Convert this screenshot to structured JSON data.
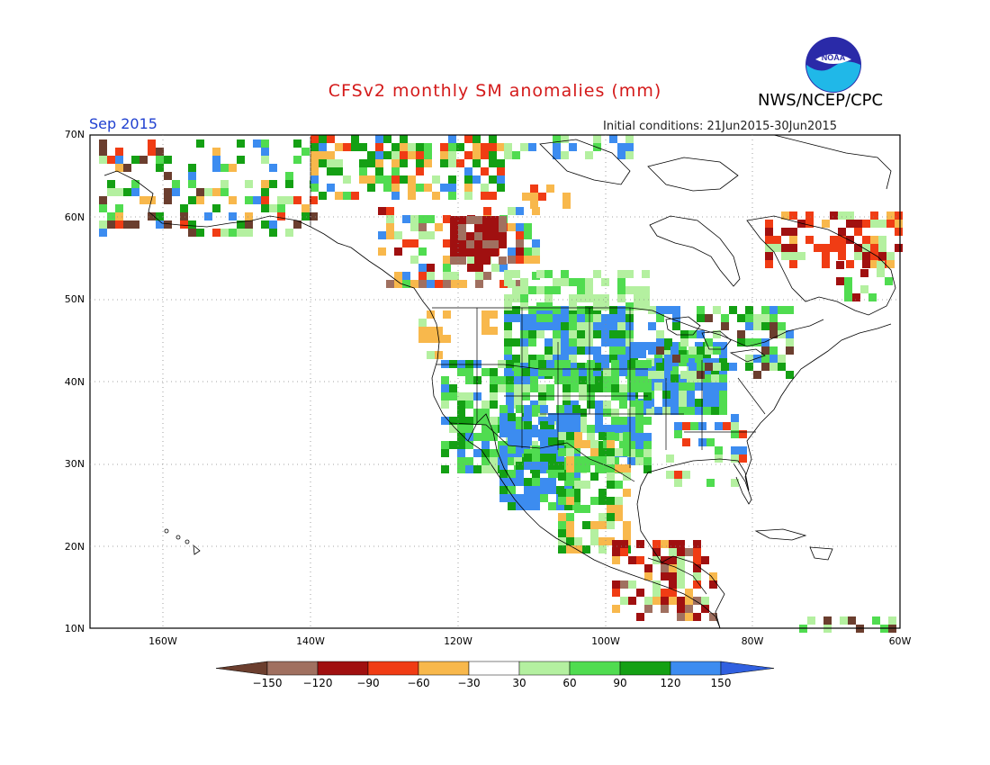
{
  "title": "CFSv2 monthly SM anomalies (mm)",
  "agency": "NWS/NCEP/CPC",
  "logo_text": "NOAA",
  "month": "Sep 2015",
  "initial_conditions": "Initial conditions: 21Jun2015-30Jun2015",
  "lat_labels": [
    "70N",
    "60N",
    "50N",
    "40N",
    "30N",
    "20N",
    "10N"
  ],
  "lon_labels": [
    "160W",
    "140W",
    "120W",
    "100W",
    "80W",
    "60W"
  ],
  "colorbar": {
    "labels": [
      "−150",
      "−120",
      "−90",
      "−60",
      "−30",
      "30",
      "60",
      "90",
      "120",
      "150"
    ],
    "colors": [
      "#6b3e2e",
      "#a07060",
      "#a01010",
      "#f03c14",
      "#f8b84c",
      "#ffffff",
      "#b4f0a0",
      "#50dc50",
      "#14a014",
      "#3c8cf0",
      "#3060e0"
    ]
  }
}
